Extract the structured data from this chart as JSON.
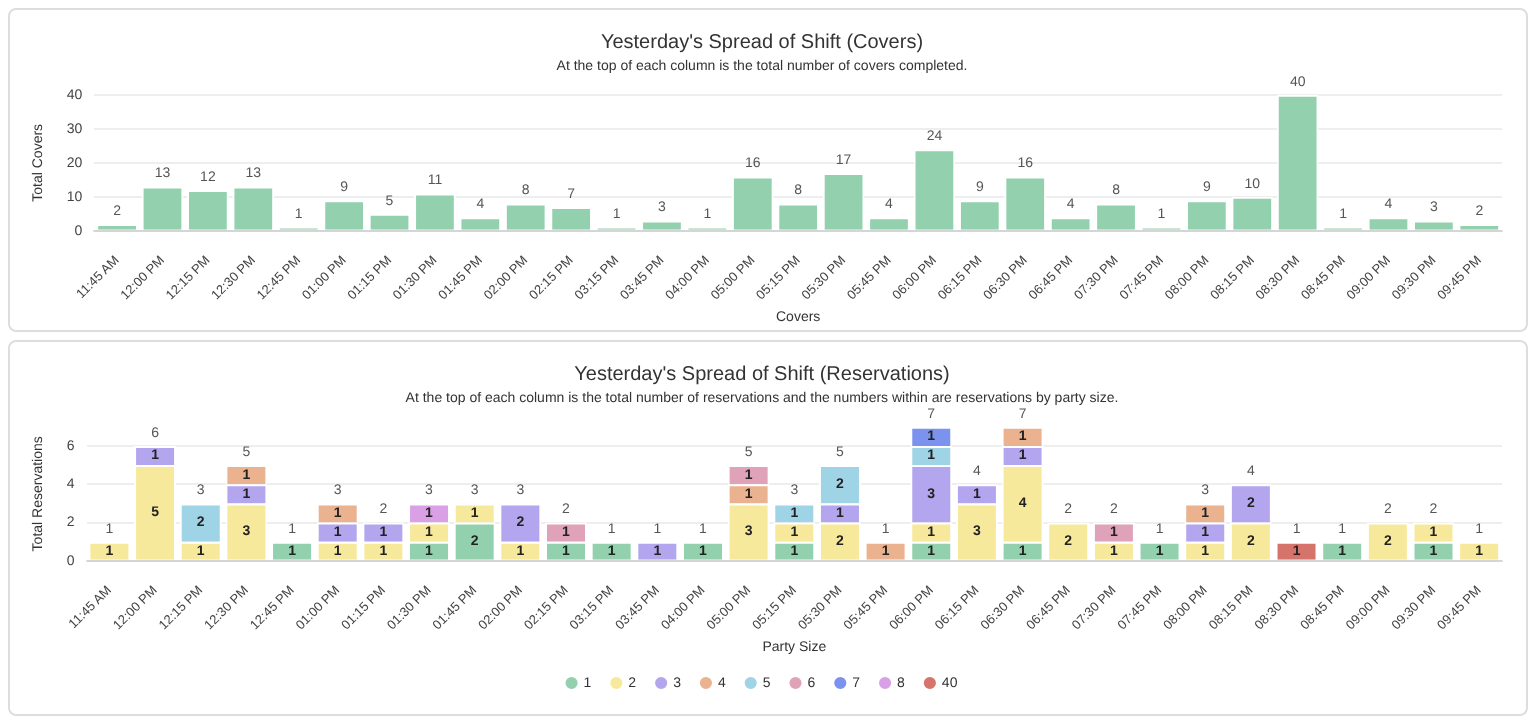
{
  "chart_data": [
    {
      "type": "bar",
      "title": "Yesterday's Spread of Shift (Covers)",
      "subtitle": "At the top of each column is the total number of covers completed.",
      "xlabel": "Covers",
      "ylabel": "Total Covers",
      "categories": [
        "11:45 AM",
        "12:00 PM",
        "12:15 PM",
        "12:30 PM",
        "12:45 PM",
        "01:00 PM",
        "01:15 PM",
        "01:30 PM",
        "01:45 PM",
        "02:00 PM",
        "02:15 PM",
        "03:15 PM",
        "03:45 PM",
        "04:00 PM",
        "05:00 PM",
        "05:15 PM",
        "05:30 PM",
        "05:45 PM",
        "06:00 PM",
        "06:15 PM",
        "06:30 PM",
        "06:45 PM",
        "07:30 PM",
        "07:45 PM",
        "08:00 PM",
        "08:15 PM",
        "08:30 PM",
        "08:45 PM",
        "09:00 PM",
        "09:30 PM",
        "09:45 PM"
      ],
      "values": [
        2,
        13,
        12,
        13,
        1,
        9,
        5,
        11,
        4,
        8,
        7,
        1,
        3,
        1,
        16,
        8,
        17,
        4,
        24,
        9,
        16,
        4,
        8,
        1,
        9,
        10,
        40,
        1,
        4,
        3,
        2
      ],
      "color": "#93d1ae",
      "ylim": [
        0,
        40
      ],
      "yticks": [
        0,
        10,
        20,
        30,
        40
      ],
      "grid": "y",
      "data_labels": true
    },
    {
      "type": "bar",
      "title": "Yesterday's Spread of Shift (Reservations)",
      "subtitle": "At the top of each column is the total number of reservations and the numbers within are reservations by party size.",
      "xlabel": "Party Size",
      "ylabel": "Total Reservations",
      "categories": [
        "11:45 AM",
        "12:00 PM",
        "12:15 PM",
        "12:30 PM",
        "12:45 PM",
        "01:00 PM",
        "01:15 PM",
        "01:30 PM",
        "01:45 PM",
        "02:00 PM",
        "02:15 PM",
        "03:15 PM",
        "03:45 PM",
        "04:00 PM",
        "05:00 PM",
        "05:15 PM",
        "05:30 PM",
        "05:45 PM",
        "06:00 PM",
        "06:15 PM",
        "06:30 PM",
        "06:45 PM",
        "07:30 PM",
        "07:45 PM",
        "08:00 PM",
        "08:15 PM",
        "08:30 PM",
        "08:45 PM",
        "09:00 PM",
        "09:30 PM",
        "09:45 PM"
      ],
      "stacked": true,
      "series": [
        {
          "name": "1",
          "color": "#93d1ae",
          "values": [
            null,
            null,
            null,
            null,
            1,
            null,
            null,
            1,
            2,
            null,
            1,
            1,
            null,
            1,
            null,
            1,
            null,
            null,
            1,
            null,
            1,
            null,
            null,
            1,
            null,
            null,
            null,
            1,
            null,
            1,
            null
          ]
        },
        {
          "name": "2",
          "color": "#f7e99c",
          "values": [
            1,
            5,
            1,
            3,
            null,
            1,
            1,
            1,
            1,
            1,
            null,
            null,
            null,
            null,
            3,
            1,
            2,
            null,
            1,
            3,
            4,
            2,
            1,
            null,
            1,
            2,
            null,
            null,
            2,
            1,
            1
          ]
        },
        {
          "name": "3",
          "color": "#b3a6ef",
          "values": [
            null,
            1,
            null,
            1,
            null,
            1,
            1,
            null,
            null,
            2,
            null,
            null,
            1,
            null,
            null,
            null,
            1,
            null,
            3,
            1,
            1,
            null,
            null,
            null,
            1,
            2,
            null,
            null,
            null,
            null,
            null
          ]
        },
        {
          "name": "4",
          "color": "#eab28f",
          "values": [
            null,
            null,
            null,
            1,
            null,
            1,
            null,
            null,
            null,
            null,
            null,
            null,
            null,
            null,
            1,
            null,
            null,
            1,
            null,
            null,
            1,
            null,
            null,
            null,
            1,
            null,
            null,
            null,
            null,
            null,
            null
          ]
        },
        {
          "name": "5",
          "color": "#9fd3e6",
          "values": [
            null,
            null,
            2,
            null,
            null,
            null,
            null,
            null,
            null,
            null,
            null,
            null,
            null,
            null,
            null,
            1,
            2,
            null,
            1,
            null,
            null,
            null,
            null,
            null,
            null,
            null,
            null,
            null,
            null,
            null,
            null
          ]
        },
        {
          "name": "6",
          "color": "#e0a2b9",
          "values": [
            null,
            null,
            null,
            null,
            null,
            null,
            null,
            null,
            null,
            null,
            1,
            null,
            null,
            null,
            1,
            null,
            null,
            null,
            null,
            null,
            null,
            null,
            1,
            null,
            null,
            null,
            null,
            null,
            null,
            null,
            null
          ]
        },
        {
          "name": "7",
          "color": "#7b93ef",
          "values": [
            null,
            null,
            null,
            null,
            null,
            null,
            null,
            null,
            null,
            null,
            null,
            null,
            null,
            null,
            null,
            null,
            null,
            null,
            1,
            null,
            null,
            null,
            null,
            null,
            null,
            null,
            null,
            null,
            null,
            null,
            null
          ]
        },
        {
          "name": "8",
          "color": "#d9a0e6",
          "values": [
            null,
            null,
            null,
            null,
            null,
            null,
            null,
            1,
            null,
            null,
            null,
            null,
            null,
            null,
            null,
            null,
            null,
            null,
            null,
            null,
            null,
            null,
            null,
            null,
            null,
            null,
            null,
            null,
            null,
            null,
            null
          ]
        },
        {
          "name": "40",
          "color": "#d6736a",
          "values": [
            null,
            null,
            null,
            null,
            null,
            null,
            null,
            null,
            null,
            null,
            null,
            null,
            null,
            null,
            null,
            null,
            null,
            null,
            null,
            null,
            null,
            null,
            null,
            null,
            null,
            null,
            1,
            null,
            null,
            null,
            null
          ]
        }
      ],
      "totals": [
        "1",
        "6",
        "3",
        "5",
        "1",
        "3",
        "2",
        "3",
        "3",
        "3",
        "2",
        "1",
        "1",
        "1",
        "5",
        "3",
        "5",
        "1",
        "7",
        "4",
        "7",
        "2",
        "2",
        "1",
        "3",
        "4",
        "1",
        "1",
        "2",
        "2",
        "1"
      ],
      "ylim": [
        0,
        7
      ],
      "yticks": [
        0,
        2,
        4,
        6
      ],
      "grid": "y",
      "legend": "bottom",
      "data_labels": true
    }
  ]
}
